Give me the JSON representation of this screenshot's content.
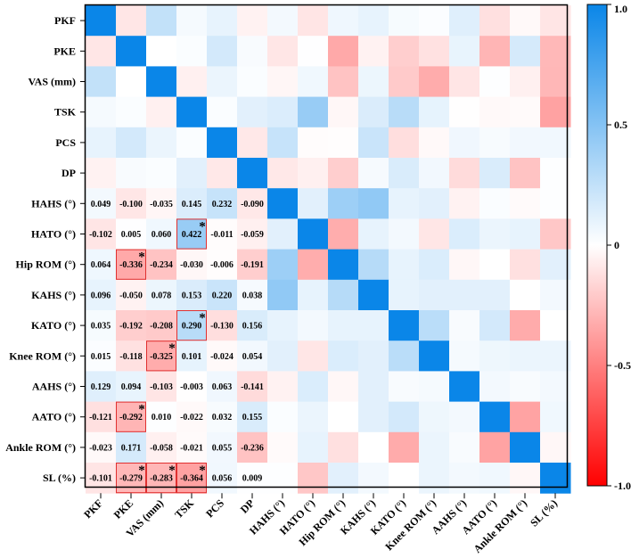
{
  "chart_data": {
    "type": "heatmap",
    "title": "",
    "variables": [
      "PKF",
      "PKE",
      "VAS (mm)",
      "TSK",
      "PCS",
      "DP",
      "HAHS (°)",
      "HATO (°)",
      "Hip ROM (°)",
      "KAHS (°)",
      "KATO (°)",
      "Knee ROM (°)",
      "AAHS (°)",
      "AATO (°)",
      "Ankle ROM (°)",
      "SL (%)"
    ],
    "matrix": [
      [
        1.0,
        -0.1,
        0.25,
        0.04,
        0.1,
        -0.05,
        0.049,
        -0.102,
        0.064,
        0.096,
        0.035,
        0.015,
        0.129,
        -0.121,
        -0.023,
        -0.101
      ],
      [
        -0.1,
        1.0,
        0.0,
        0.02,
        0.18,
        0.03,
        -0.1,
        0.005,
        -0.336,
        -0.05,
        -0.192,
        -0.118,
        0.094,
        -0.292,
        0.171,
        -0.279
      ],
      [
        0.25,
        0.0,
        1.0,
        -0.06,
        0.08,
        0.02,
        -0.035,
        0.06,
        -0.234,
        0.078,
        -0.208,
        -0.325,
        -0.103,
        0.01,
        -0.058,
        -0.283
      ],
      [
        0.04,
        0.02,
        -0.06,
        1.0,
        0.02,
        0.12,
        0.145,
        0.422,
        -0.03,
        0.153,
        0.29,
        0.101,
        -0.003,
        -0.022,
        -0.021,
        -0.364
      ],
      [
        0.1,
        0.18,
        0.08,
        0.02,
        1.0,
        -0.09,
        0.232,
        -0.011,
        -0.006,
        0.22,
        -0.13,
        -0.024,
        0.063,
        0.032,
        0.055,
        0.056
      ],
      [
        -0.05,
        0.03,
        0.02,
        0.12,
        -0.09,
        1.0,
        -0.09,
        -0.059,
        -0.191,
        0.038,
        0.156,
        0.054,
        -0.141,
        0.155,
        -0.236,
        0.009
      ],
      [
        0.049,
        -0.1,
        -0.035,
        0.145,
        0.232,
        -0.09,
        1.0,
        0.12,
        0.4,
        0.45,
        0.1,
        0.12,
        -0.05,
        0.02,
        -0.02,
        0.01
      ],
      [
        -0.102,
        0.005,
        0.06,
        0.422,
        -0.011,
        -0.059,
        0.12,
        1.0,
        -0.32,
        0.1,
        0.05,
        -0.1,
        0.15,
        0.08,
        0.1,
        -0.22
      ],
      [
        0.064,
        -0.336,
        -0.234,
        -0.03,
        -0.006,
        -0.191,
        0.4,
        -0.32,
        1.0,
        0.3,
        0.1,
        0.15,
        -0.03,
        0.0,
        -0.12,
        0.12
      ],
      [
        0.096,
        -0.05,
        0.078,
        0.153,
        0.22,
        0.038,
        0.45,
        0.1,
        0.3,
        1.0,
        0.1,
        0.12,
        0.12,
        0.12,
        0.0,
        0.05
      ],
      [
        0.035,
        -0.192,
        -0.208,
        0.29,
        -0.13,
        0.156,
        0.1,
        0.05,
        0.1,
        0.1,
        1.0,
        0.28,
        0.03,
        0.18,
        -0.33,
        0.0
      ],
      [
        0.015,
        -0.118,
        -0.325,
        0.101,
        -0.024,
        0.054,
        0.12,
        -0.1,
        0.15,
        0.12,
        0.28,
        1.0,
        0.04,
        0.07,
        0.08,
        0.08
      ],
      [
        0.129,
        0.094,
        -0.103,
        -0.003,
        0.063,
        -0.141,
        -0.05,
        0.15,
        -0.03,
        0.12,
        0.03,
        0.04,
        1.0,
        0.05,
        0.03,
        0.05
      ],
      [
        -0.121,
        -0.292,
        0.01,
        -0.022,
        0.032,
        0.155,
        0.02,
        0.08,
        0.0,
        0.12,
        0.18,
        0.07,
        0.05,
        1.0,
        -0.36,
        0.06
      ],
      [
        -0.023,
        0.171,
        -0.058,
        -0.021,
        0.055,
        -0.236,
        -0.02,
        0.1,
        -0.12,
        0.0,
        -0.33,
        0.08,
        0.03,
        -0.36,
        1.0,
        -0.03
      ],
      [
        -0.101,
        -0.279,
        -0.283,
        -0.364,
        0.056,
        0.009,
        0.01,
        -0.22,
        0.12,
        0.05,
        0.0,
        0.08,
        0.05,
        0.06,
        -0.03,
        1.0
      ]
    ],
    "value_labels": [
      [
        "0.049",
        "-0.100",
        "-0.035",
        "0.145",
        "0.232",
        "-0.090"
      ],
      [
        "-0.102",
        "0.005",
        "0.060",
        "0.422",
        "-0.011",
        "-0.059"
      ],
      [
        "0.064",
        "-0.336",
        "-0.234",
        "-0.030",
        "-0.006",
        "-0.191"
      ],
      [
        "0.096",
        "-0.050",
        "0.078",
        "0.153",
        "0.220",
        "0.038"
      ],
      [
        "0.035",
        "-0.192",
        "-0.208",
        "0.290",
        "-0.130",
        "0.156"
      ],
      [
        "0.015",
        "-0.118",
        "-0.325",
        "0.101",
        "-0.024",
        "0.054"
      ],
      [
        "0.129",
        "0.094",
        "-0.103",
        "-0.003",
        "0.063",
        "-0.141"
      ],
      [
        "-0.121",
        "-0.292",
        "0.010",
        "-0.022",
        "0.032",
        "0.155"
      ],
      [
        "-0.023",
        "0.171",
        "-0.058",
        "-0.021",
        "0.055",
        "-0.236"
      ],
      [
        "-0.101",
        "-0.279",
        "-0.283",
        "-0.364",
        "0.056",
        "0.009"
      ]
    ],
    "value_label_rows": [
      "HAHS (°)",
      "HATO (°)",
      "Hip ROM (°)",
      "KAHS (°)",
      "KATO (°)",
      "Knee ROM (°)",
      "AAHS (°)",
      "AATO (°)",
      "Ankle ROM (°)",
      "SL (%)"
    ],
    "value_label_cols": [
      "PKF",
      "PKE",
      "VAS (mm)",
      "TSK",
      "PCS",
      "DP"
    ],
    "significant": [
      {
        "row": "HATO (°)",
        "col": "TSK",
        "value": 0.422
      },
      {
        "row": "Hip ROM (°)",
        "col": "PKE",
        "value": -0.336
      },
      {
        "row": "KATO (°)",
        "col": "TSK",
        "value": 0.29
      },
      {
        "row": "Knee ROM (°)",
        "col": "VAS (mm)",
        "value": -0.325
      },
      {
        "row": "AATO (°)",
        "col": "PKE",
        "value": -0.292
      },
      {
        "row": "SL (%)",
        "col": "PKE",
        "value": -0.279
      },
      {
        "row": "SL (%)",
        "col": "VAS (mm)",
        "value": -0.283
      },
      {
        "row": "SL (%)",
        "col": "TSK",
        "value": -0.364
      }
    ],
    "significance_marker": "*",
    "colorbar": {
      "range": [
        -1.0,
        1.0
      ],
      "ticks": [
        "1.0",
        "0.5",
        "0",
        "-0.5",
        "-1.0"
      ],
      "tick_values": [
        1.0,
        0.5,
        0,
        -0.5,
        -1.0
      ],
      "positive_color": "#0a86e8",
      "zero_color": "#ffffff",
      "negative_color": "#ff0000"
    },
    "highlight_color": "#e03030"
  }
}
